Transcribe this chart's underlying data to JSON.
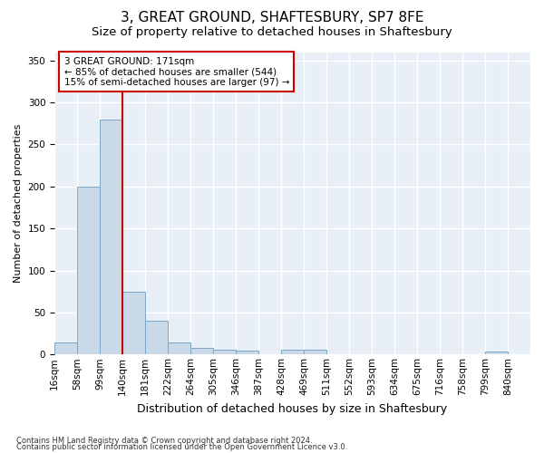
{
  "title": "3, GREAT GROUND, SHAFTESBURY, SP7 8FE",
  "subtitle": "Size of property relative to detached houses in Shaftesbury",
  "xlabel": "Distribution of detached houses by size in Shaftesbury",
  "ylabel": "Number of detached properties",
  "footnote1": "Contains HM Land Registry data © Crown copyright and database right 2024.",
  "footnote2": "Contains public sector information licensed under the Open Government Licence v3.0.",
  "bins": [
    "16sqm",
    "58sqm",
    "99sqm",
    "140sqm",
    "181sqm",
    "222sqm",
    "264sqm",
    "305sqm",
    "346sqm",
    "387sqm",
    "428sqm",
    "469sqm",
    "511sqm",
    "552sqm",
    "593sqm",
    "634sqm",
    "675sqm",
    "716sqm",
    "758sqm",
    "799sqm",
    "840sqm"
  ],
  "values": [
    14,
    200,
    280,
    75,
    40,
    14,
    8,
    6,
    5,
    0,
    6,
    6,
    0,
    0,
    0,
    0,
    0,
    0,
    0,
    3,
    0
  ],
  "bar_color": "#c9d9e8",
  "bar_edge_color": "#7ba7c7",
  "vline_pos": 3,
  "vline_color": "#cc0000",
  "annotation_text": "3 GREAT GROUND: 171sqm\n← 85% of detached houses are smaller (544)\n15% of semi-detached houses are larger (97) →",
  "annotation_box_color": "#cc0000",
  "ylim": [
    0,
    360
  ],
  "yticks": [
    0,
    50,
    100,
    150,
    200,
    250,
    300,
    350
  ],
  "background_color": "#e8eff6",
  "grid_color": "#ffffff",
  "title_fontsize": 11,
  "subtitle_fontsize": 9.5,
  "ylabel_fontsize": 8,
  "xlabel_fontsize": 9,
  "tick_fontsize": 7.5,
  "annot_fontsize": 7.5
}
